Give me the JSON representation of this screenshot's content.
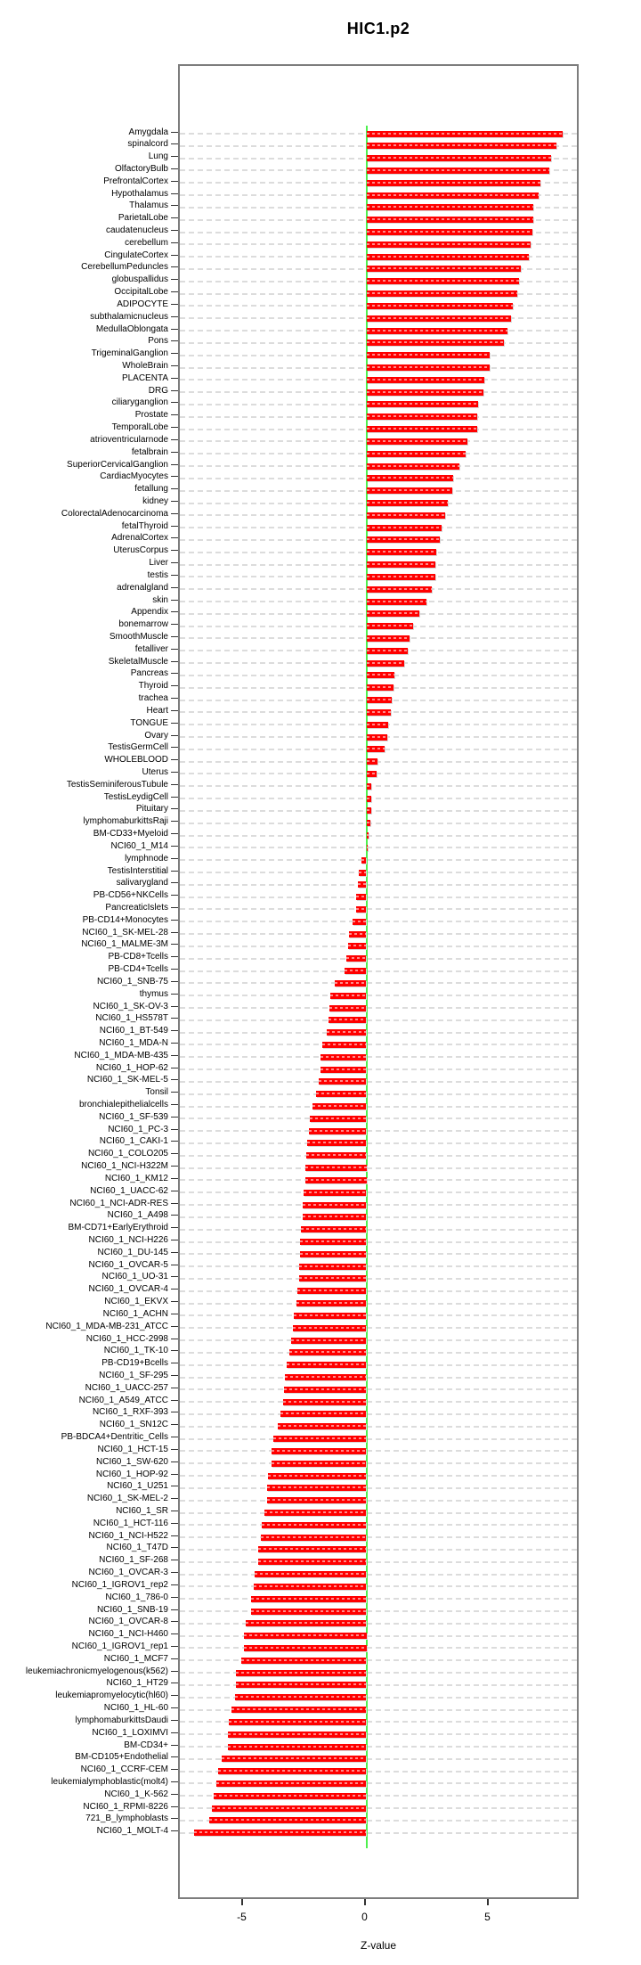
{
  "title": "HIC1.p2",
  "chart_data": {
    "type": "bar",
    "orientation": "horizontal",
    "title": "HIC1.p2",
    "xlabel": "Z-value",
    "x_ticks": [
      "-5",
      "0",
      "5"
    ],
    "x_tick_values": [
      -5,
      0,
      5
    ],
    "xlim": [
      -7.6,
      8.7
    ],
    "grid": "dashed horizontal line per category",
    "legend": "none",
    "bar_color": "#ff0000",
    "zero_line_color": "#4ef04e",
    "categories": [
      "Amygdala",
      "spinalcord",
      "Lung",
      "OlfactoryBulb",
      "PrefrontalCortex",
      "Hypothalamus",
      "Thalamus",
      "ParietalLobe",
      "caudatenucleus",
      "cerebellum",
      "CingulateCortex",
      "CerebellumPeduncles",
      "globuspallidus",
      "OccipitalLobe",
      "ADIPOCYTE",
      "subthalamicnucleus",
      "MedullaOblongata",
      "Pons",
      "TrigeminalGanglion",
      "WholeBrain",
      "PLACENTA",
      "DRG",
      "ciliaryganglion",
      "Prostate",
      "TemporalLobe",
      "atrioventricularnode",
      "fetalbrain",
      "SuperiorCervicalGanglion",
      "CardiacMyocytes",
      "fetallung",
      "kidney",
      "ColorectalAdenocarcinoma",
      "fetalThyroid",
      "AdrenalCortex",
      "UterusCorpus",
      "Liver",
      "testis",
      "adrenalgland",
      "skin",
      "Appendix",
      "bonemarrow",
      "SmoothMuscle",
      "fetalliver",
      "SkeletalMuscle",
      "Pancreas",
      "Thyroid",
      "trachea",
      "Heart",
      "TONGUE",
      "Ovary",
      "TestisGermCell",
      "WHOLEBLOOD",
      "Uterus",
      "TestisSeminiferousTubule",
      "TestisLeydigCell",
      "Pituitary",
      "lymphomaburkittsRaji",
      "BM-CD33+Myeloid",
      "NCI60_1_M14",
      "lymphnode",
      "TestisInterstitial",
      "salivarygland",
      "PB-CD56+NKCells",
      "PancreaticIslets",
      "PB-CD14+Monocytes",
      "NCI60_1_SK-MEL-28",
      "NCI60_1_MALME-3M",
      "PB-CD8+Tcells",
      "PB-CD4+Tcells",
      "NCI60_1_SNB-75",
      "thymus",
      "NCI60_1_SK-OV-3",
      "NCI60_1_HS578T",
      "NCI60_1_BT-549",
      "NCI60_1_MDA-N",
      "NCI60_1_MDA-MB-435",
      "NCI60_1_HOP-62",
      "NCI60_1_SK-MEL-5",
      "Tonsil",
      "bronchialepithelialcells",
      "NCI60_1_SF-539",
      "NCI60_1_PC-3",
      "NCI60_1_CAKI-1",
      "NCI60_1_COLO205",
      "NCI60_1_NCI-H322M",
      "NCI60_1_KM12",
      "NCI60_1_UACC-62",
      "NCI60_1_NCI-ADR-RES",
      "NCI60_1_A498",
      "BM-CD71+EarlyErythroid",
      "NCI60_1_NCI-H226",
      "NCI60_1_DU-145",
      "NCI60_1_OVCAR-5",
      "NCI60_1_UO-31",
      "NCI60_1_OVCAR-4",
      "NCI60_1_EKVX",
      "NCI60_1_ACHN",
      "NCI60_1_MDA-MB-231_ATCC",
      "NCI60_1_HCC-2998",
      "NCI60_1_TK-10",
      "PB-CD19+Bcells",
      "NCI60_1_SF-295",
      "NCI60_1_UACC-257",
      "NCI60_1_A549_ATCC",
      "NCI60_1_RXF-393",
      "NCI60_1_SN12C",
      "PB-BDCA4+Dentritic_Cells",
      "NCI60_1_HCT-15",
      "NCI60_1_SW-620",
      "NCI60_1_HOP-92",
      "NCI60_1_U251",
      "NCI60_1_SK-MEL-2",
      "NCI60_1_SR",
      "NCI60_1_HCT-116",
      "NCI60_1_NCI-H522",
      "NCI60_1_T47D",
      "NCI60_1_SF-268",
      "NCI60_1_OVCAR-3",
      "NCI60_1_IGROV1_rep2",
      "NCI60_1_786-0",
      "NCI60_1_SNB-19",
      "NCI60_1_OVCAR-8",
      "NCI60_1_NCI-H460",
      "NCI60_1_IGROV1_rep1",
      "NCI60_1_MCF7",
      "leukemiachronicmyelogenous(k562)",
      "NCI60_1_HT29",
      "leukemiapromyelocytic(hl60)",
      "NCI60_1_HL-60",
      "lymphomaburkittsDaudi",
      "NCI60_1_LOXIMVI",
      "BM-CD34+",
      "BM-CD105+Endothelial",
      "NCI60_1_CCRF-CEM",
      "leukemialymphoblastic(molt4)",
      "NCI60_1_K-562",
      "NCI60_1_RPMI-8226",
      "721_B_lymphoblasts",
      "NCI60_1_MOLT-4"
    ],
    "values": [
      8.0,
      7.75,
      7.5,
      7.45,
      7.1,
      7.0,
      6.8,
      6.8,
      6.75,
      6.7,
      6.6,
      6.3,
      6.2,
      6.15,
      5.95,
      5.9,
      5.75,
      5.6,
      5.0,
      5.0,
      4.8,
      4.75,
      4.55,
      4.5,
      4.5,
      4.1,
      4.05,
      3.8,
      3.55,
      3.5,
      3.3,
      3.2,
      3.05,
      3.0,
      2.85,
      2.8,
      2.8,
      2.65,
      2.45,
      2.15,
      1.9,
      1.75,
      1.7,
      1.55,
      1.15,
      1.1,
      1.05,
      1.0,
      0.9,
      0.85,
      0.75,
      0.45,
      0.4,
      0.2,
      0.2,
      0.2,
      0.15,
      0.1,
      0.05,
      -0.2,
      -0.3,
      -0.35,
      -0.4,
      -0.4,
      -0.55,
      -0.7,
      -0.75,
      -0.8,
      -0.9,
      -1.3,
      -1.45,
      -1.5,
      -1.55,
      -1.6,
      -1.8,
      -1.85,
      -1.85,
      -1.95,
      -2.05,
      -2.2,
      -2.3,
      -2.35,
      -2.4,
      -2.45,
      -2.5,
      -2.5,
      -2.55,
      -2.6,
      -2.6,
      -2.65,
      -2.7,
      -2.7,
      -2.75,
      -2.75,
      -2.8,
      -2.85,
      -2.95,
      -3.0,
      -3.05,
      -3.15,
      -3.25,
      -3.3,
      -3.35,
      -3.4,
      -3.5,
      -3.6,
      -3.8,
      -3.85,
      -3.85,
      -4.0,
      -4.05,
      -4.05,
      -4.15,
      -4.25,
      -4.3,
      -4.4,
      -4.4,
      -4.55,
      -4.6,
      -4.7,
      -4.7,
      -4.9,
      -5.0,
      -5.0,
      -5.1,
      -5.3,
      -5.3,
      -5.35,
      -5.5,
      -5.6,
      -5.65,
      -5.65,
      -5.9,
      -6.05,
      -6.1,
      -6.2,
      -6.3,
      -6.4,
      -7.0
    ]
  }
}
